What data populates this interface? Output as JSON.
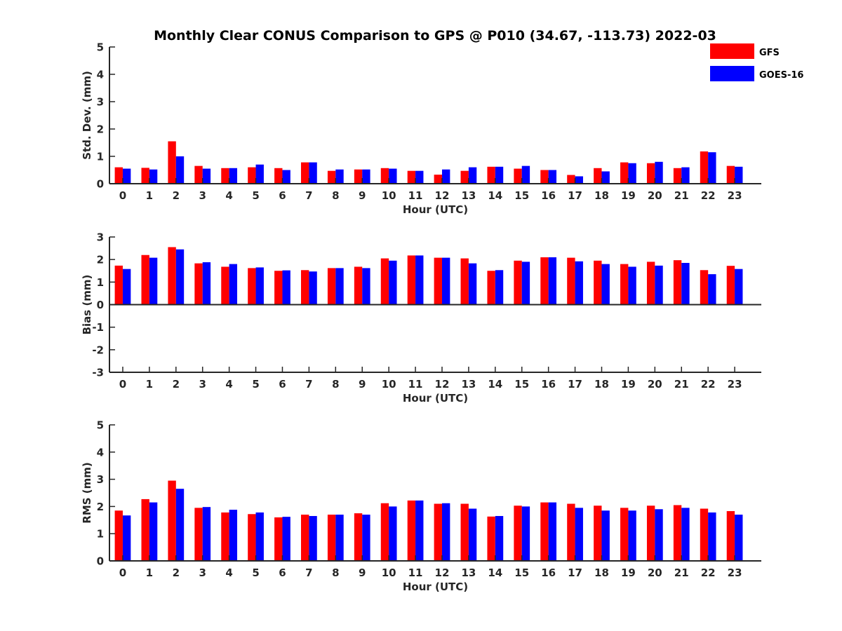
{
  "title": "Monthly Clear CONUS Comparison to GPS @ P010 (34.67, -113.73) 2022-03",
  "legend": {
    "placement": "top-right",
    "entries": [
      {
        "label": "GFS",
        "color": "#ff0000"
      },
      {
        "label": "GOES-16",
        "color": "#0000ff"
      }
    ]
  },
  "chart_data": [
    {
      "type": "bar",
      "xlabel": "Hour (UTC)",
      "ylabel": "Std. Dev. (mm)",
      "ylim": [
        0,
        5
      ],
      "yticks": [
        0,
        1,
        2,
        3,
        4,
        5
      ],
      "categories": [
        "0",
        "1",
        "2",
        "3",
        "4",
        "5",
        "6",
        "7",
        "8",
        "9",
        "10",
        "11",
        "12",
        "13",
        "14",
        "15",
        "16",
        "17",
        "18",
        "19",
        "20",
        "21",
        "22",
        "23"
      ],
      "series": [
        {
          "name": "GFS",
          "color": "#ff0000",
          "values": [
            0.6,
            0.58,
            1.55,
            0.65,
            0.57,
            0.6,
            0.57,
            0.78,
            0.47,
            0.52,
            0.57,
            0.47,
            0.33,
            0.47,
            0.62,
            0.55,
            0.5,
            0.32,
            0.57,
            0.78,
            0.75,
            0.57,
            1.18,
            0.65
          ]
        },
        {
          "name": "GOES-16",
          "color": "#0000ff",
          "values": [
            0.55,
            0.52,
            1.0,
            0.55,
            0.57,
            0.7,
            0.5,
            0.78,
            0.52,
            0.52,
            0.55,
            0.47,
            0.52,
            0.6,
            0.62,
            0.65,
            0.5,
            0.27,
            0.45,
            0.75,
            0.8,
            0.6,
            1.15,
            0.62
          ]
        }
      ]
    },
    {
      "type": "bar",
      "xlabel": "Hour (UTC)",
      "ylabel": "Bias (mm)",
      "ylim": [
        -3,
        3
      ],
      "yticks": [
        -3,
        -2,
        -1,
        0,
        1,
        2,
        3
      ],
      "categories": [
        "0",
        "1",
        "2",
        "3",
        "4",
        "5",
        "6",
        "7",
        "8",
        "9",
        "10",
        "11",
        "12",
        "13",
        "14",
        "15",
        "16",
        "17",
        "18",
        "19",
        "20",
        "21",
        "22",
        "23"
      ],
      "series": [
        {
          "name": "GFS",
          "color": "#ff0000",
          "values": [
            1.73,
            2.2,
            2.55,
            1.83,
            1.68,
            1.62,
            1.5,
            1.53,
            1.62,
            1.68,
            2.05,
            2.18,
            2.08,
            2.05,
            1.5,
            1.95,
            2.1,
            2.08,
            1.95,
            1.8,
            1.9,
            1.97,
            1.53,
            1.72
          ]
        },
        {
          "name": "GOES-16",
          "color": "#0000ff",
          "values": [
            1.58,
            2.08,
            2.45,
            1.88,
            1.8,
            1.65,
            1.52,
            1.47,
            1.62,
            1.62,
            1.95,
            2.18,
            2.08,
            1.83,
            1.53,
            1.9,
            2.1,
            1.92,
            1.8,
            1.68,
            1.73,
            1.85,
            1.35,
            1.58
          ]
        }
      ]
    },
    {
      "type": "bar",
      "xlabel": "Hour (UTC)",
      "ylabel": "RMS (mm)",
      "ylim": [
        0,
        5
      ],
      "yticks": [
        0,
        1,
        2,
        3,
        4,
        5
      ],
      "categories": [
        "0",
        "1",
        "2",
        "3",
        "4",
        "5",
        "6",
        "7",
        "8",
        "9",
        "10",
        "11",
        "12",
        "13",
        "14",
        "15",
        "16",
        "17",
        "18",
        "19",
        "20",
        "21",
        "22",
        "23"
      ],
      "series": [
        {
          "name": "GFS",
          "color": "#ff0000",
          "values": [
            1.85,
            2.27,
            2.95,
            1.95,
            1.78,
            1.72,
            1.6,
            1.7,
            1.7,
            1.75,
            2.12,
            2.22,
            2.1,
            2.1,
            1.63,
            2.03,
            2.15,
            2.1,
            2.03,
            1.95,
            2.03,
            2.05,
            1.92,
            1.83
          ]
        },
        {
          "name": "GOES-16",
          "color": "#0000ff",
          "values": [
            1.67,
            2.15,
            2.65,
            1.98,
            1.88,
            1.78,
            1.62,
            1.65,
            1.7,
            1.7,
            2.0,
            2.22,
            2.12,
            1.92,
            1.65,
            2.0,
            2.15,
            1.95,
            1.85,
            1.85,
            1.9,
            1.95,
            1.78,
            1.7
          ]
        }
      ]
    }
  ]
}
